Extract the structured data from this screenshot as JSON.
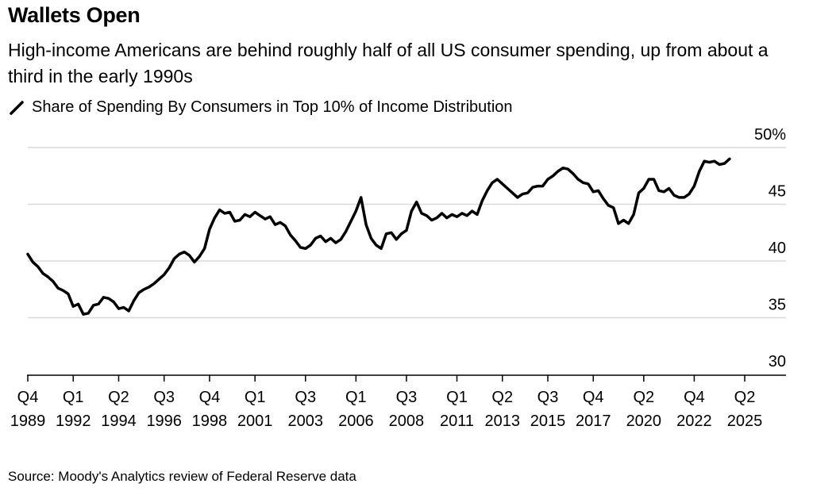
{
  "header": {
    "title": "Wallets Open",
    "subtitle": "High-income Americans are behind roughly half of all US consumer spending, up from about a third in the early 1990s",
    "legend_label": "Share of Spending By Consumers in Top 10% of Income Distribution"
  },
  "footer": {
    "source": "Source: Moody's Analytics review of Federal Reserve data"
  },
  "chart_data": {
    "type": "line",
    "title": "",
    "xlabel": "",
    "ylabel": "",
    "ylim": [
      28,
      50
    ],
    "grid": true,
    "y_ticks": [
      {
        "value": 50,
        "label": "50%"
      },
      {
        "value": 45,
        "label": "45"
      },
      {
        "value": 40,
        "label": "40"
      },
      {
        "value": 35,
        "label": "35"
      },
      {
        "value": 30,
        "label": "30"
      }
    ],
    "x_ticks": [
      {
        "q": "Q4",
        "year": "1989"
      },
      {
        "q": "Q1",
        "year": "1992"
      },
      {
        "q": "Q2",
        "year": "1994"
      },
      {
        "q": "Q3",
        "year": "1996"
      },
      {
        "q": "Q4",
        "year": "1998"
      },
      {
        "q": "Q1",
        "year": "2001"
      },
      {
        "q": "Q3",
        "year": "2003"
      },
      {
        "q": "Q1",
        "year": "2006"
      },
      {
        "q": "Q3",
        "year": "2008"
      },
      {
        "q": "Q1",
        "year": "2011"
      },
      {
        "q": "Q2",
        "year": "2013"
      },
      {
        "q": "Q3",
        "year": "2015"
      },
      {
        "q": "Q4",
        "year": "2017"
      },
      {
        "q": "Q2",
        "year": "2020"
      },
      {
        "q": "Q4",
        "year": "2022"
      },
      {
        "q": "Q2",
        "year": "2025"
      }
    ],
    "series": [
      {
        "name": "Share of Spending By Consumers in Top 10% of Income Distribution",
        "color": "#000000",
        "points": [
          [
            "1989 Q4",
            40.6
          ],
          [
            "1990 Q1",
            39.9
          ],
          [
            "1990 Q2",
            39.5
          ],
          [
            "1990 Q3",
            38.9
          ],
          [
            "1990 Q4",
            38.6
          ],
          [
            "1991 Q1",
            38.2
          ],
          [
            "1991 Q2",
            37.6
          ],
          [
            "1991 Q3",
            37.4
          ],
          [
            "1991 Q4",
            37.1
          ],
          [
            "1992 Q1",
            36.0
          ],
          [
            "1992 Q2",
            36.2
          ],
          [
            "1992 Q3",
            35.3
          ],
          [
            "1992 Q4",
            35.4
          ],
          [
            "1993 Q1",
            36.1
          ],
          [
            "1993 Q2",
            36.2
          ],
          [
            "1993 Q3",
            36.8
          ],
          [
            "1993 Q4",
            36.7
          ],
          [
            "1994 Q1",
            36.4
          ],
          [
            "1994 Q2",
            35.8
          ],
          [
            "1994 Q3",
            35.9
          ],
          [
            "1994 Q4",
            35.6
          ],
          [
            "1995 Q1",
            36.5
          ],
          [
            "1995 Q2",
            37.2
          ],
          [
            "1995 Q3",
            37.5
          ],
          [
            "1995 Q4",
            37.7
          ],
          [
            "1996 Q1",
            38.0
          ],
          [
            "1996 Q2",
            38.4
          ],
          [
            "1996 Q3",
            38.8
          ],
          [
            "1996 Q4",
            39.4
          ],
          [
            "1997 Q1",
            40.2
          ],
          [
            "1997 Q2",
            40.6
          ],
          [
            "1997 Q3",
            40.8
          ],
          [
            "1997 Q4",
            40.5
          ],
          [
            "1998 Q1",
            39.9
          ],
          [
            "1998 Q2",
            40.4
          ],
          [
            "1998 Q3",
            41.1
          ],
          [
            "1998 Q4",
            42.8
          ],
          [
            "1999 Q1",
            43.8
          ],
          [
            "1999 Q2",
            44.5
          ],
          [
            "1999 Q3",
            44.2
          ],
          [
            "1999 Q4",
            44.3
          ],
          [
            "2000 Q1",
            43.5
          ],
          [
            "2000 Q2",
            43.6
          ],
          [
            "2000 Q3",
            44.1
          ],
          [
            "2000 Q4",
            43.9
          ],
          [
            "2001 Q1",
            44.3
          ],
          [
            "2001 Q2",
            44.0
          ],
          [
            "2001 Q3",
            43.7
          ],
          [
            "2001 Q4",
            43.9
          ],
          [
            "2002 Q1",
            43.2
          ],
          [
            "2002 Q2",
            43.4
          ],
          [
            "2002 Q3",
            43.1
          ],
          [
            "2002 Q4",
            42.3
          ],
          [
            "2003 Q1",
            41.8
          ],
          [
            "2003 Q2",
            41.2
          ],
          [
            "2003 Q3",
            41.1
          ],
          [
            "2003 Q4",
            41.4
          ],
          [
            "2004 Q1",
            42.0
          ],
          [
            "2004 Q2",
            42.2
          ],
          [
            "2004 Q3",
            41.7
          ],
          [
            "2004 Q4",
            42.0
          ],
          [
            "2005 Q1",
            41.6
          ],
          [
            "2005 Q2",
            41.9
          ],
          [
            "2005 Q3",
            42.6
          ],
          [
            "2005 Q4",
            43.5
          ],
          [
            "2006 Q1",
            44.4
          ],
          [
            "2006 Q2",
            45.6
          ],
          [
            "2006 Q3",
            43.2
          ],
          [
            "2006 Q4",
            42.0
          ],
          [
            "2007 Q1",
            41.4
          ],
          [
            "2007 Q2",
            41.1
          ],
          [
            "2007 Q3",
            42.4
          ],
          [
            "2007 Q4",
            42.5
          ],
          [
            "2008 Q1",
            41.9
          ],
          [
            "2008 Q2",
            42.4
          ],
          [
            "2008 Q3",
            42.7
          ],
          [
            "2008 Q4",
            44.4
          ],
          [
            "2009 Q1",
            45.2
          ],
          [
            "2009 Q2",
            44.2
          ],
          [
            "2009 Q3",
            44.0
          ],
          [
            "2009 Q4",
            43.6
          ],
          [
            "2010 Q1",
            43.8
          ],
          [
            "2010 Q2",
            44.2
          ],
          [
            "2010 Q3",
            43.8
          ],
          [
            "2010 Q4",
            44.1
          ],
          [
            "2011 Q1",
            43.9
          ],
          [
            "2011 Q2",
            44.2
          ],
          [
            "2011 Q3",
            44.0
          ],
          [
            "2011 Q4",
            44.4
          ],
          [
            "2012 Q1",
            44.1
          ],
          [
            "2012 Q2",
            45.3
          ],
          [
            "2012 Q3",
            46.2
          ],
          [
            "2012 Q4",
            46.9
          ],
          [
            "2013 Q1",
            47.2
          ],
          [
            "2013 Q2",
            46.8
          ],
          [
            "2013 Q3",
            46.4
          ],
          [
            "2013 Q4",
            46.0
          ],
          [
            "2014 Q1",
            45.6
          ],
          [
            "2014 Q2",
            45.9
          ],
          [
            "2014 Q3",
            46.0
          ],
          [
            "2014 Q4",
            46.5
          ],
          [
            "2015 Q1",
            46.6
          ],
          [
            "2015 Q2",
            46.6
          ],
          [
            "2015 Q3",
            47.2
          ],
          [
            "2015 Q4",
            47.5
          ],
          [
            "2016 Q1",
            47.9
          ],
          [
            "2016 Q2",
            48.2
          ],
          [
            "2016 Q3",
            48.1
          ],
          [
            "2016 Q4",
            47.7
          ],
          [
            "2017 Q1",
            47.2
          ],
          [
            "2017 Q2",
            46.9
          ],
          [
            "2017 Q3",
            46.8
          ],
          [
            "2017 Q4",
            46.1
          ],
          [
            "2018 Q1",
            46.2
          ],
          [
            "2018 Q2",
            45.5
          ],
          [
            "2018 Q3",
            44.9
          ],
          [
            "2018 Q4",
            44.7
          ],
          [
            "2019 Q1",
            43.3
          ],
          [
            "2019 Q2",
            43.6
          ],
          [
            "2019 Q3",
            43.3
          ],
          [
            "2019 Q4",
            44.1
          ],
          [
            "2020 Q1",
            46.0
          ],
          [
            "2020 Q2",
            46.4
          ],
          [
            "2020 Q3",
            47.2
          ],
          [
            "2020 Q4",
            47.2
          ],
          [
            "2021 Q1",
            46.2
          ],
          [
            "2021 Q2",
            46.1
          ],
          [
            "2021 Q3",
            46.4
          ],
          [
            "2021 Q4",
            45.8
          ],
          [
            "2022 Q1",
            45.6
          ],
          [
            "2022 Q2",
            45.6
          ],
          [
            "2022 Q3",
            45.9
          ],
          [
            "2022 Q4",
            46.6
          ],
          [
            "2023 Q1",
            47.9
          ],
          [
            "2023 Q2",
            48.8
          ],
          [
            "2023 Q3",
            48.7
          ],
          [
            "2023 Q4",
            48.8
          ],
          [
            "2024 Q1",
            48.5
          ],
          [
            "2024 Q2",
            48.6
          ],
          [
            "2024 Q3",
            49.0
          ]
        ]
      }
    ]
  }
}
